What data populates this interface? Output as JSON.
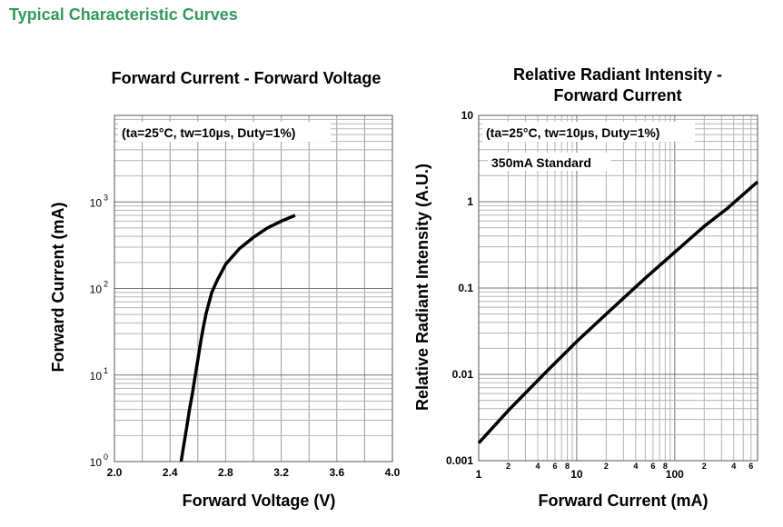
{
  "section_title": "Typical Characteristic Curves",
  "colors": {
    "section_title": "#2e9c5a",
    "curve": "#000000",
    "grid": "#999999"
  },
  "chart_data": [
    {
      "type": "line",
      "title": "Forward Current - Forward Voltage",
      "condition": "(ta=25°C, tw=10µs, Duty=1%)",
      "xlabel": "Forward Voltage (V)",
      "ylabel": "Forward Current (mA)",
      "xlim": [
        2.0,
        4.0
      ],
      "ylim": [
        1,
        10000
      ],
      "yscale": "log",
      "grid": true,
      "x_ticks": [
        "2.0",
        "2.4",
        "2.8",
        "3.2",
        "3.6",
        "4.0"
      ],
      "y_ticks": [
        {
          "base": "10",
          "exp": "0"
        },
        {
          "base": "10",
          "exp": "1"
        },
        {
          "base": "10",
          "exp": "2"
        },
        {
          "base": "10",
          "exp": "3"
        }
      ],
      "series": [
        {
          "x": [
            2.48,
            2.5,
            2.52,
            2.54,
            2.56,
            2.58,
            2.6,
            2.62,
            2.64,
            2.66,
            2.7,
            2.74,
            2.8,
            2.9,
            3.0,
            3.1,
            3.2,
            3.3
          ],
          "y": [
            1,
            1.6,
            2.5,
            4,
            6,
            9.5,
            15,
            24,
            36,
            52,
            90,
            125,
            190,
            290,
            390,
            500,
            600,
            700
          ]
        }
      ]
    },
    {
      "type": "line",
      "title": "Relative Radiant Intensity - Forward Current",
      "title_lines": [
        "Relative Radiant Intensity -",
        "Forward Current"
      ],
      "condition": "(ta=25°C, tw=10µs, Duty=1%)",
      "annotation": "350mA Standard",
      "xlabel": "Forward Current (mA)",
      "ylabel": "Relative Radiant Intensity (A.U.)",
      "xlim": [
        1,
        700
      ],
      "ylim": [
        0.001,
        10
      ],
      "xscale": "log",
      "yscale": "log",
      "grid": true,
      "x_ticks": [
        "1",
        "2",
        "4",
        "6",
        "8",
        "10",
        "2",
        "4",
        "6",
        "8",
        "100",
        "2",
        "4",
        "6"
      ],
      "y_ticks": [
        "10",
        "1",
        "0.1",
        "0.01",
        "0.001"
      ],
      "series": [
        {
          "x": [
            1,
            2,
            5,
            10,
            20,
            50,
            100,
            200,
            350,
            700
          ],
          "y": [
            0.0016,
            0.0038,
            0.011,
            0.024,
            0.05,
            0.13,
            0.26,
            0.52,
            0.85,
            1.7
          ]
        }
      ]
    }
  ]
}
